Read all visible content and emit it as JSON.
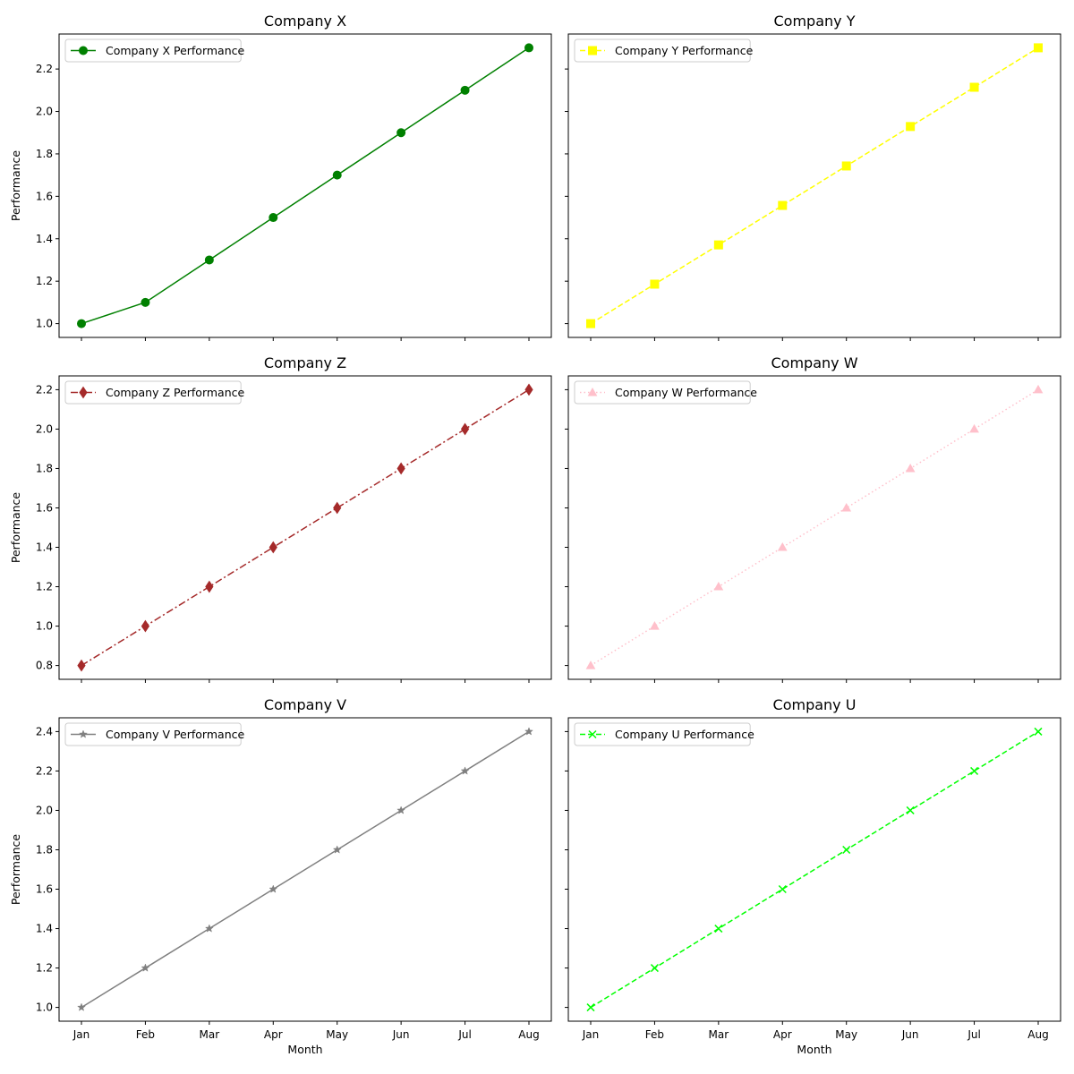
{
  "chart_data": [
    {
      "type": "line",
      "title": "Company X",
      "categories": [
        "Jan",
        "Feb",
        "Mar",
        "Apr",
        "May",
        "Jun",
        "Jul",
        "Aug"
      ],
      "series": [
        {
          "name": "Company X Performance",
          "values": [
            1.0,
            1.1,
            1.3,
            1.5,
            1.7,
            1.9,
            2.1,
            2.3
          ]
        }
      ],
      "color": "#008000",
      "dash": "solid",
      "marker": "circle",
      "xlabel": "",
      "ylabel": "Performance",
      "ylim": [
        0.935,
        2.365
      ],
      "yticks": [
        1.0,
        1.2,
        1.4,
        1.6,
        1.8,
        2.0,
        2.2
      ],
      "show_ytick_labels": true,
      "show_xtick_labels": false,
      "legend": "upper-left",
      "grid": false
    },
    {
      "type": "line",
      "title": "Company Y",
      "categories": [
        "Jan",
        "Feb",
        "Mar",
        "Apr",
        "May",
        "Jun",
        "Jul",
        "Aug"
      ],
      "series": [
        {
          "name": "Company Y Performance",
          "values": [
            1.0,
            1.186,
            1.371,
            1.557,
            1.743,
            1.929,
            2.114,
            2.3
          ]
        }
      ],
      "color": "#ffff00",
      "dash": "dashed",
      "marker": "square",
      "xlabel": "",
      "ylabel": "",
      "ylim": [
        0.935,
        2.365
      ],
      "yticks": [
        1.0,
        1.2,
        1.4,
        1.6,
        1.8,
        2.0,
        2.2
      ],
      "show_ytick_labels": false,
      "show_xtick_labels": false,
      "legend": "upper-left",
      "grid": false
    },
    {
      "type": "line",
      "title": "Company Z",
      "categories": [
        "Jan",
        "Feb",
        "Mar",
        "Apr",
        "May",
        "Jun",
        "Jul",
        "Aug"
      ],
      "series": [
        {
          "name": "Company Z Performance",
          "values": [
            0.8,
            1.0,
            1.2,
            1.4,
            1.6,
            1.8,
            2.0,
            2.2
          ]
        }
      ],
      "color": "#a52a2a",
      "dash": "dashdot",
      "marker": "diamond",
      "xlabel": "",
      "ylabel": "Performance",
      "ylim": [
        0.73,
        2.27
      ],
      "yticks": [
        0.8,
        1.0,
        1.2,
        1.4,
        1.6,
        1.8,
        2.0,
        2.2
      ],
      "show_ytick_labels": true,
      "show_xtick_labels": false,
      "legend": "upper-left",
      "grid": false
    },
    {
      "type": "line",
      "title": "Company W",
      "categories": [
        "Jan",
        "Feb",
        "Mar",
        "Apr",
        "May",
        "Jun",
        "Jul",
        "Aug"
      ],
      "series": [
        {
          "name": "Company W Performance",
          "values": [
            0.8,
            1.0,
            1.2,
            1.4,
            1.6,
            1.8,
            2.0,
            2.2
          ]
        }
      ],
      "color": "#ffc0cb",
      "dash": "dotted",
      "marker": "triangle",
      "xlabel": "",
      "ylabel": "",
      "ylim": [
        0.73,
        2.27
      ],
      "yticks": [
        0.8,
        1.0,
        1.2,
        1.4,
        1.6,
        1.8,
        2.0,
        2.2
      ],
      "show_ytick_labels": false,
      "show_xtick_labels": false,
      "legend": "upper-left",
      "grid": false
    },
    {
      "type": "line",
      "title": "Company V",
      "categories": [
        "Jan",
        "Feb",
        "Mar",
        "Apr",
        "May",
        "Jun",
        "Jul",
        "Aug"
      ],
      "series": [
        {
          "name": "Company V Performance",
          "values": [
            1.0,
            1.2,
            1.4,
            1.6,
            1.8,
            2.0,
            2.2,
            2.4
          ]
        }
      ],
      "color": "#808080",
      "dash": "solid",
      "marker": "star",
      "xlabel": "Month",
      "ylabel": "Performance",
      "ylim": [
        0.93,
        2.47
      ],
      "yticks": [
        1.0,
        1.2,
        1.4,
        1.6,
        1.8,
        2.0,
        2.2,
        2.4
      ],
      "show_ytick_labels": true,
      "show_xtick_labels": true,
      "legend": "upper-left",
      "grid": false
    },
    {
      "type": "line",
      "title": "Company U",
      "categories": [
        "Jan",
        "Feb",
        "Mar",
        "Apr",
        "May",
        "Jun",
        "Jul",
        "Aug"
      ],
      "series": [
        {
          "name": "Company U Performance",
          "values": [
            1.0,
            1.2,
            1.4,
            1.6,
            1.8,
            2.0,
            2.2,
            2.4
          ]
        }
      ],
      "color": "#00ff00",
      "dash": "dashed",
      "marker": "x",
      "xlabel": "Month",
      "ylabel": "",
      "ylim": [
        0.93,
        2.47
      ],
      "yticks": [
        1.0,
        1.2,
        1.4,
        1.6,
        1.8,
        2.0,
        2.2,
        2.4
      ],
      "show_ytick_labels": false,
      "show_xtick_labels": true,
      "legend": "upper-left",
      "grid": false
    }
  ]
}
